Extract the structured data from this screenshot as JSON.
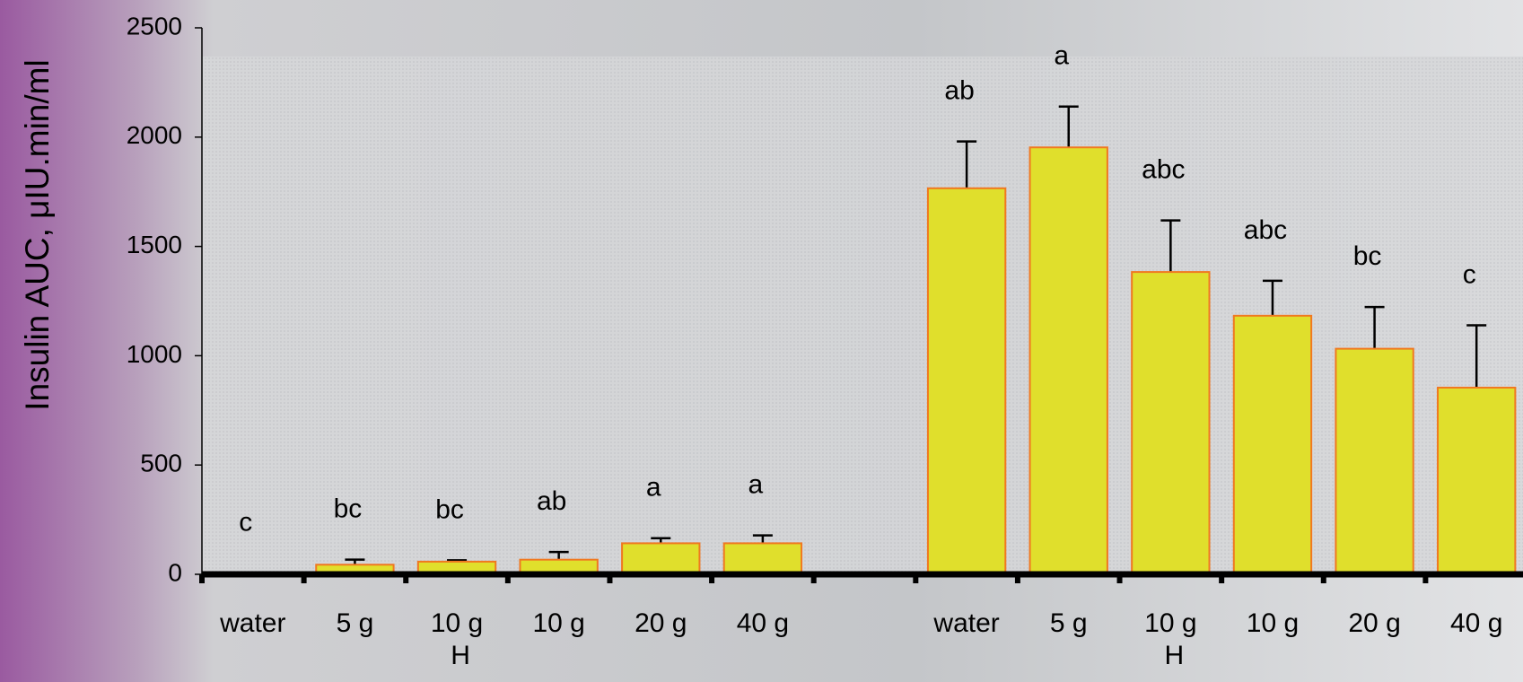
{
  "chart_data": {
    "type": "bar",
    "y_label": "Insulin AUC, μIU.min/ml",
    "categories": [
      "water",
      "5 g",
      "10 g",
      "10 g",
      "20 g",
      "40 g",
      null,
      "water",
      "5 g",
      "10 g",
      "10 g",
      "20 g",
      "40 g"
    ],
    "sublabels": [
      null,
      null,
      "H",
      null,
      null,
      null,
      null,
      null,
      null,
      "H",
      null,
      null,
      null
    ],
    "values": [
      5,
      44,
      58,
      67,
      142,
      142,
      null,
      1766,
      1953,
      1383,
      1183,
      1032,
      854
    ],
    "errors": [
      null,
      23,
      6,
      35,
      23,
      36,
      null,
      214,
      187,
      236,
      160,
      191,
      285
    ],
    "letters": [
      "c",
      "bc",
      "bc",
      "ab",
      "a",
      "a",
      null,
      "ab",
      "a",
      "abc",
      "abc",
      "bc",
      "c"
    ],
    "color": "#e0df2c",
    "edge_color": "#f07820",
    "ylim": [
      0,
      2500
    ],
    "yticks": [
      0,
      500,
      1000,
      1500,
      2000,
      2500
    ]
  }
}
